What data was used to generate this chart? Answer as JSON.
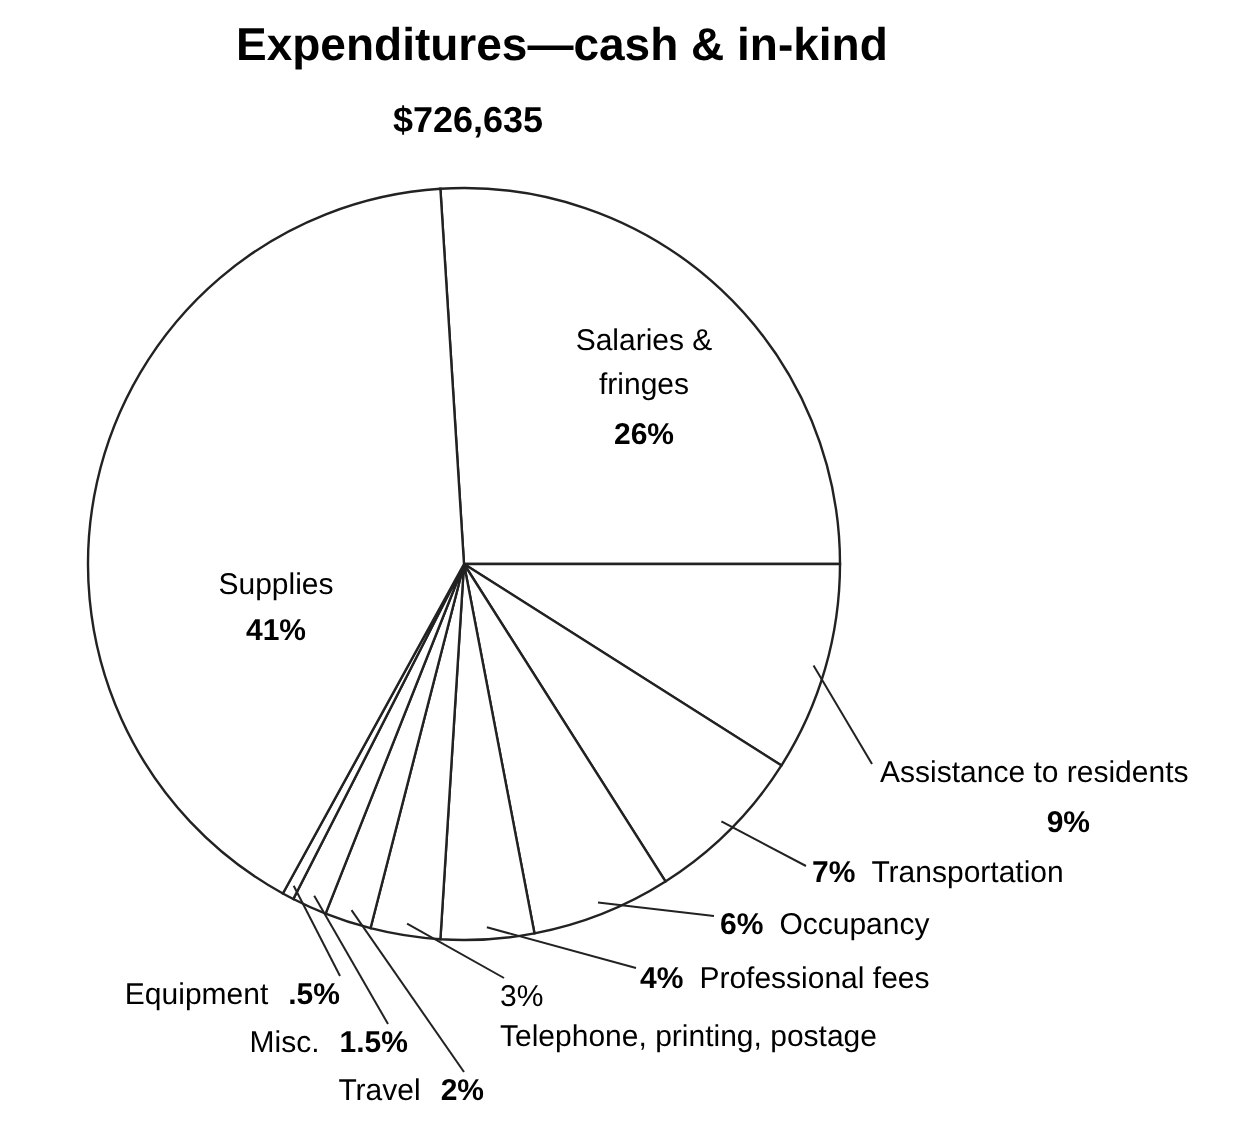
{
  "chart_data": {
    "type": "pie",
    "title": "Expenditures—cash & in-kind",
    "subtitle": "$726,635",
    "categories": [
      "Salaries & fringes",
      "Assistance to residents",
      "Transportation",
      "Occupancy",
      "Professional fees",
      "Telephone, printing, postage",
      "Travel",
      "Misc.",
      "Equipment",
      "Supplies"
    ],
    "values": [
      26,
      9,
      7,
      6,
      4,
      3,
      2,
      1.5,
      0.5,
      41
    ],
    "value_labels": [
      "26%",
      "9%",
      "7%",
      "6%",
      "4%",
      "3%",
      "2%",
      "1.5%",
      ".5%",
      "41%"
    ],
    "colors": [
      "#ffffff",
      "#ffffff",
      "#ffffff",
      "#ffffff",
      "#ffffff",
      "#ffffff",
      "#ffffff",
      "#ffffff",
      "#ffffff",
      "#ffffff"
    ]
  }
}
